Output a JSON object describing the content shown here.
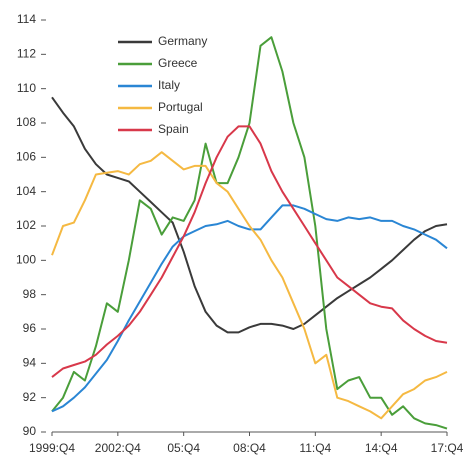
{
  "chart_data": {
    "type": "line",
    "x": [
      1999.75,
      2000.25,
      2000.75,
      2001.25,
      2001.75,
      2002.25,
      2002.75,
      2003.25,
      2003.75,
      2004.25,
      2004.75,
      2005.25,
      2005.75,
      2006.25,
      2006.75,
      2007.25,
      2007.75,
      2008.25,
      2008.75,
      2009.25,
      2009.75,
      2010.25,
      2010.75,
      2011.25,
      2011.75,
      2012.25,
      2012.75,
      2013.25,
      2013.75,
      2014.25,
      2014.75,
      2015.25,
      2015.75,
      2016.25,
      2016.75,
      2017.25,
      2017.75
    ],
    "series": [
      {
        "name": "Germany",
        "color": "#3a3a3a",
        "values": [
          109.5,
          108.6,
          107.8,
          106.5,
          105.6,
          105,
          104.8,
          104.6,
          104,
          103.4,
          102.8,
          102.2,
          100.5,
          98.5,
          97,
          96.2,
          95.8,
          95.8,
          96.1,
          96.3,
          96.3,
          96.2,
          96,
          96.3,
          96.8,
          97.3,
          97.8,
          98.2,
          98.6,
          99,
          99.5,
          100,
          100.6,
          101.2,
          101.7,
          102,
          102.1
        ]
      },
      {
        "name": "Greece",
        "color": "#4a9e3a",
        "values": [
          91.2,
          92,
          93.5,
          93,
          95,
          97.5,
          97,
          100,
          103.5,
          103,
          101.5,
          102.5,
          102.3,
          103.5,
          106.8,
          104.5,
          104.5,
          106,
          108,
          112.5,
          113,
          111,
          108,
          106,
          102,
          96,
          92.5,
          93,
          93.2,
          92,
          92,
          91,
          91.5,
          90.8,
          90.5,
          90.4,
          90.2
        ]
      },
      {
        "name": "Italy",
        "color": "#2a86d4",
        "values": [
          91.2,
          91.5,
          92,
          92.6,
          93.4,
          94.2,
          95.3,
          96.5,
          97.6,
          98.7,
          99.8,
          100.8,
          101.4,
          101.7,
          102,
          102.1,
          102.3,
          102,
          101.8,
          101.8,
          102.5,
          103.2,
          103.2,
          103,
          102.7,
          102.4,
          102.3,
          102.5,
          102.4,
          102.5,
          102.3,
          102.3,
          102,
          101.8,
          101.5,
          101.2,
          100.7
        ]
      },
      {
        "name": "Portugal",
        "color": "#f5b942",
        "values": [
          100.3,
          102,
          102.2,
          103.5,
          105,
          105.1,
          105.2,
          105,
          105.6,
          105.8,
          106.3,
          105.8,
          105.3,
          105.5,
          105.5,
          104.5,
          104,
          103,
          102,
          101.2,
          100,
          99,
          97.5,
          96,
          94,
          94.5,
          92,
          91.8,
          91.5,
          91.2,
          90.8,
          91.5,
          92.2,
          92.5,
          93,
          93.2,
          93.5
        ]
      },
      {
        "name": "Spain",
        "color": "#d8384a",
        "values": [
          93.2,
          93.7,
          93.9,
          94.1,
          94.5,
          95.1,
          95.6,
          96.2,
          97,
          98,
          99,
          100.2,
          101.4,
          102.8,
          104.5,
          106,
          107.2,
          107.8,
          107.8,
          106.8,
          105.2,
          104,
          103,
          102,
          101,
          100,
          99,
          98.5,
          98,
          97.5,
          97.3,
          97.2,
          96.5,
          96,
          95.6,
          95.3,
          95.2
        ]
      }
    ],
    "xlim": [
      1999.75,
      2017.75
    ],
    "xticks": [
      {
        "value": 1999.75,
        "label": "1999:Q4"
      },
      {
        "value": 2002.75,
        "label": "2002:Q4"
      },
      {
        "value": 2005.75,
        "label": "05:Q4"
      },
      {
        "value": 2008.75,
        "label": "08:Q4"
      },
      {
        "value": 2011.75,
        "label": "11:Q4"
      },
      {
        "value": 2014.75,
        "label": "14:Q4"
      },
      {
        "value": 2017.75,
        "label": "17:Q4"
      }
    ],
    "ylim": [
      90,
      114
    ],
    "yticks": [
      90,
      92,
      94,
      96,
      98,
      100,
      102,
      104,
      106,
      108,
      110,
      112,
      114
    ]
  }
}
